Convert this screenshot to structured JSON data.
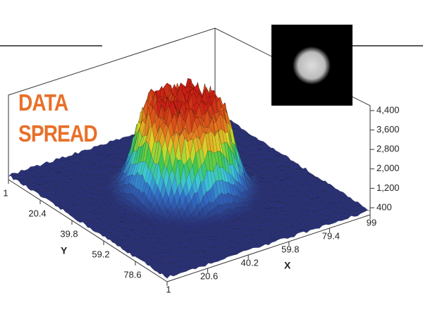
{
  "chart_data": {
    "type": "surface3d",
    "title": "DATA SPREAD",
    "title_color": "#e8702a",
    "xlabel": "X",
    "ylabel": "Y",
    "xlim": [
      1,
      99
    ],
    "xticks": [
      1,
      20.6,
      40.2,
      59.8,
      79.4,
      99
    ],
    "ylim": [
      1,
      98
    ],
    "yticks": [
      1,
      20.4,
      39.8,
      59.2,
      78.6
    ],
    "zlim": [
      400,
      4400
    ],
    "zticks": [
      400,
      {
        "value": 1200,
        "label": "1,200"
      },
      {
        "value": 2000,
        "label": "2,000"
      },
      {
        "value": 2800,
        "label": "2,800"
      },
      {
        "value": 3600,
        "label": "3,600"
      },
      {
        "value": 4400,
        "label": "4,400"
      }
    ]
  }
}
